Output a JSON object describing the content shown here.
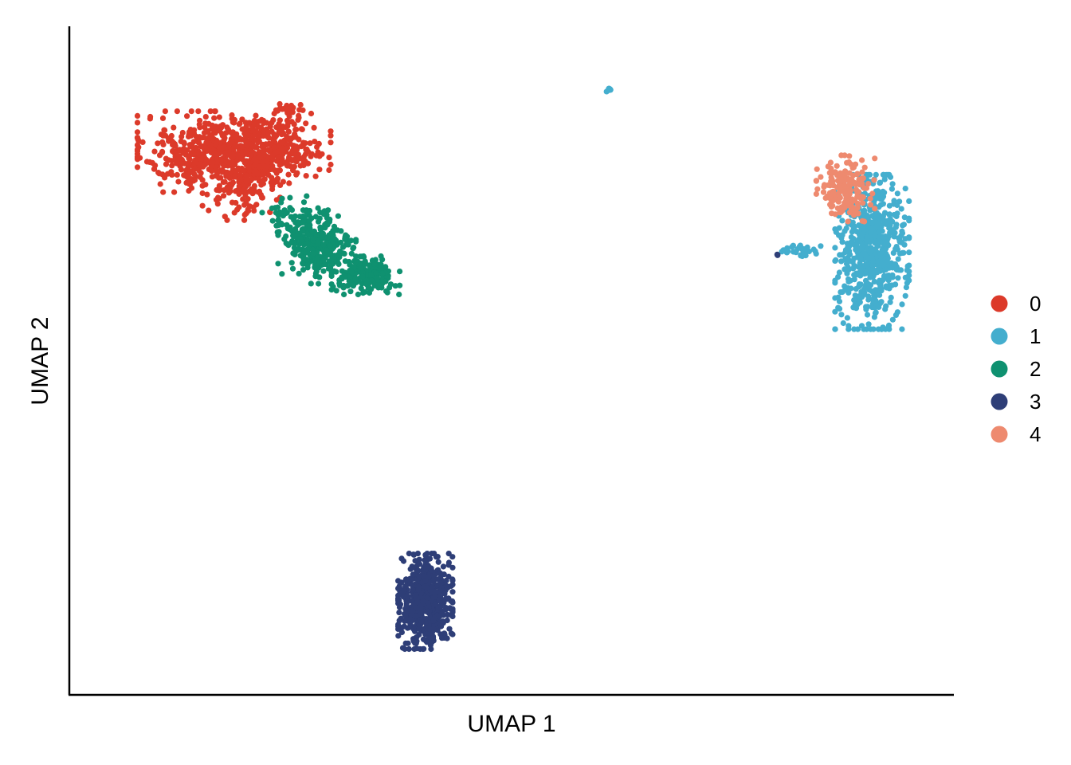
{
  "chart_data": {
    "type": "scatter",
    "title": "",
    "xlabel": "UMAP 1",
    "ylabel": "UMAP 2",
    "xlim": [
      -10,
      10
    ],
    "ylim": [
      -10,
      10
    ],
    "grid": false,
    "legend_position": "right",
    "series": [
      {
        "name": "0",
        "color": "#DC3A2A",
        "clusters": [
          {
            "cx": -6.7,
            "cy": 6.25,
            "sx": 0.8,
            "sy": 0.55,
            "n": 520
          },
          {
            "cx": -5.3,
            "cy": 6.4,
            "sx": 0.55,
            "sy": 0.45,
            "n": 260
          },
          {
            "cx": -6.0,
            "cy": 5.3,
            "sx": 0.45,
            "sy": 0.5,
            "n": 140
          },
          {
            "cx": -5.05,
            "cy": 7.5,
            "sx": 0.15,
            "sy": 0.08,
            "n": 25
          }
        ]
      },
      {
        "name": "1",
        "color": "#44AECE",
        "clusters": [
          {
            "cx": 8.15,
            "cy": 3.25,
            "sx": 0.38,
            "sy": 1.05,
            "n": 650
          },
          {
            "cx": 6.55,
            "cy": 3.3,
            "sx": 0.2,
            "sy": 0.09,
            "n": 30
          },
          {
            "cx": 2.2,
            "cy": 8.1,
            "sx": 0.05,
            "sy": 0.04,
            "n": 6
          }
        ]
      },
      {
        "name": "2",
        "color": "#0F9170",
        "clusters": [
          {
            "cx": -4.4,
            "cy": 3.4,
            "sx": 0.4,
            "sy": 0.5,
            "n": 280
          },
          {
            "cx": -3.3,
            "cy": 2.55,
            "sx": 0.35,
            "sy": 0.26,
            "n": 200
          },
          {
            "cx": -4.95,
            "cy": 4.3,
            "sx": 0.35,
            "sy": 0.3,
            "n": 60
          }
        ]
      },
      {
        "name": "3",
        "color": "#2E3E77",
        "clusters": [
          {
            "cx": -1.95,
            "cy": -7.2,
            "sx": 0.28,
            "sy": 0.65,
            "n": 600
          },
          {
            "cx": 6.0,
            "cy": 3.15,
            "sx": 0.03,
            "sy": 0.03,
            "n": 3
          }
        ]
      },
      {
        "name": "4",
        "color": "#EE8A6F",
        "clusters": [
          {
            "cx": 7.55,
            "cy": 5.15,
            "sx": 0.3,
            "sy": 0.45,
            "n": 170
          }
        ]
      }
    ]
  }
}
